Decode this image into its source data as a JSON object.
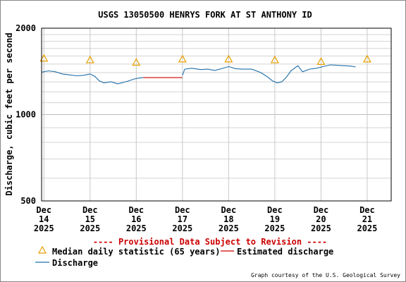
{
  "chart_data": {
    "type": "line",
    "title": "USGS 13050500 HENRYS FORK AT ST ANTHONY ID",
    "ylabel": "Discharge, cubic feet per second",
    "xlabel": "",
    "y_scale": "log",
    "ylim": [
      500,
      2000
    ],
    "y_ticks": [
      500,
      1000,
      2000
    ],
    "y_tick_labels": [
      "500",
      "1000",
      "2000"
    ],
    "x_ticks": [
      {
        "x": 0,
        "lines": [
          "Dec",
          "14",
          "2025"
        ]
      },
      {
        "x": 1,
        "lines": [
          "Dec",
          "15",
          "2025"
        ]
      },
      {
        "x": 2,
        "lines": [
          "Dec",
          "16",
          "2025"
        ]
      },
      {
        "x": 3,
        "lines": [
          "Dec",
          "17",
          "2025"
        ]
      },
      {
        "x": 4,
        "lines": [
          "Dec",
          "18",
          "2025"
        ]
      },
      {
        "x": 5,
        "lines": [
          "Dec",
          "19",
          "2025"
        ]
      },
      {
        "x": 6,
        "lines": [
          "Dec",
          "20",
          "2025"
        ]
      },
      {
        "x": 7,
        "lines": [
          "Dec",
          "21",
          "2025"
        ]
      }
    ],
    "xlim": [
      -0.05,
      7.52
    ],
    "grid": true,
    "provisional_note": "---- Provisional Data Subject to Revision ----",
    "credit": "Graph courtesy of the U.S. Geological Survey",
    "legend": [
      {
        "label": "Median daily statistic (65 years)",
        "color": "#e8a000",
        "marker": "triangle"
      },
      {
        "label": "Estimated discharge",
        "color": "#cc0000",
        "marker": "line"
      },
      {
        "label": "Discharge",
        "color": "#1f6fa8",
        "marker": "line"
      }
    ],
    "series": [
      {
        "name": "Discharge",
        "color": "#1f6fa8",
        "x": [
          -0.05,
          0.1,
          0.25,
          0.4,
          0.55,
          0.7,
          0.85,
          1.0,
          1.1,
          1.2,
          1.3,
          1.45,
          1.6,
          1.8,
          1.95,
          2.05,
          2.15
        ],
        "y": [
          1405,
          1420,
          1410,
          1385,
          1375,
          1365,
          1370,
          1385,
          1360,
          1310,
          1290,
          1300,
          1280,
          1305,
          1330,
          1340,
          1345
        ]
      },
      {
        "name": "Estimated discharge",
        "color": "#cc0000",
        "x": [
          2.15,
          3.0
        ],
        "y": [
          1345,
          1345
        ]
      },
      {
        "name": "Discharge",
        "color": "#1f6fa8",
        "x": [
          3.0,
          3.05,
          3.2,
          3.4,
          3.55,
          3.7,
          3.85,
          4.0,
          4.15,
          4.3,
          4.5,
          4.7,
          4.85,
          4.95,
          5.05,
          5.15,
          5.25,
          5.35,
          5.5,
          5.6,
          5.75,
          5.9,
          6.05,
          6.2,
          6.35,
          6.5,
          6.65,
          6.75
        ],
        "y": [
          1370,
          1440,
          1450,
          1435,
          1440,
          1425,
          1445,
          1470,
          1445,
          1440,
          1440,
          1400,
          1350,
          1310,
          1290,
          1300,
          1350,
          1420,
          1480,
          1410,
          1440,
          1450,
          1470,
          1490,
          1485,
          1480,
          1475,
          1465
        ]
      },
      {
        "name": "Median daily statistic (65 years)",
        "type": "scatter",
        "color": "#e8a000",
        "x": [
          0.0,
          1.0,
          2.0,
          3.0,
          4.0,
          5.0,
          6.0,
          7.0
        ],
        "y": [
          1570,
          1550,
          1520,
          1560,
          1560,
          1550,
          1530,
          1560
        ]
      }
    ]
  }
}
